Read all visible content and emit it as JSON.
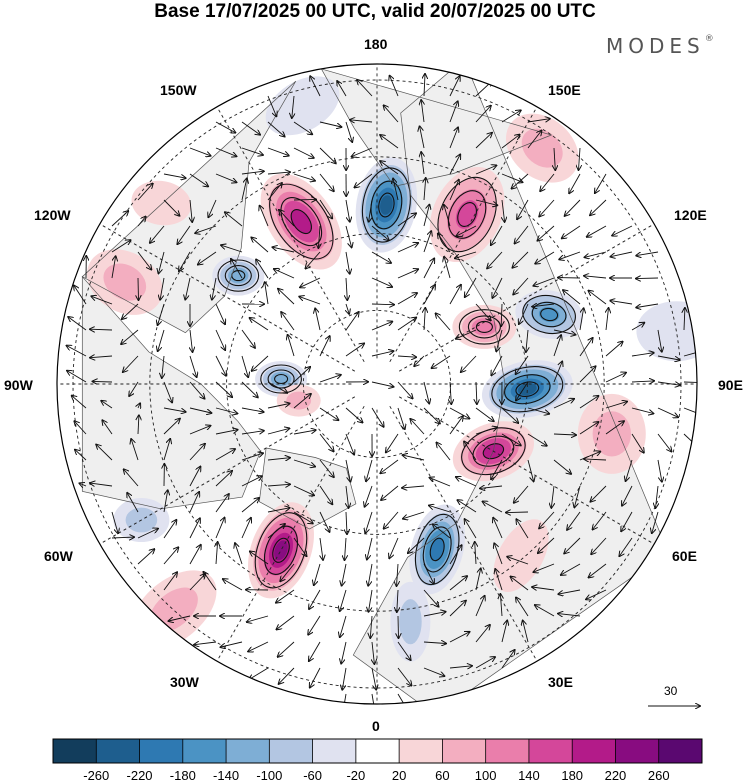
{
  "title": "Base 17/07/2025 00 UTC, valid 20/07/2025 00 UTC",
  "logo": {
    "text": "MODES",
    "mark": "®"
  },
  "longitude_labels": {
    "top": "180",
    "bottom": "0",
    "left": "90W",
    "right": "90E",
    "nw150": "150W",
    "nw120": "120W",
    "ne150": "150E",
    "ne120": "120E",
    "sw60": "60W",
    "sw30": "30W",
    "se60": "60E",
    "se30": "30E"
  },
  "vector_scale": {
    "label": "30"
  },
  "colorbar": {
    "ticks": [
      "-260",
      "-220",
      "-180",
      "-140",
      "-100",
      "-60",
      "-20",
      "20",
      "60",
      "100",
      "140",
      "180",
      "220",
      "260"
    ],
    "colors": [
      "#123d5c",
      "#1e5e8e",
      "#2e79b2",
      "#4b93c4",
      "#7eaed5",
      "#b3c6e2",
      "#e0e2f0",
      "#ffffff",
      "#f8d6d8",
      "#f3aec0",
      "#ea7eab",
      "#d4479a",
      "#b31b89",
      "#880c80",
      "#5a0870"
    ]
  },
  "map": {
    "projection": "north-polar-stereographic",
    "land_color": "#efefef",
    "anomalies": [
      {
        "lon": 177,
        "r": 0.56,
        "value": -240,
        "rx": 30,
        "ry": 48,
        "rot": 10
      },
      {
        "lon": 152,
        "r": 0.6,
        "value": 170,
        "rx": 34,
        "ry": 50,
        "rot": 25
      },
      {
        "lon": 205,
        "r": 0.56,
        "value": 200,
        "rx": 32,
        "ry": 54,
        "rot": -35
      },
      {
        "lon": 232,
        "r": 0.55,
        "value": -110,
        "rx": 26,
        "ry": 20,
        "rot": 0
      },
      {
        "lon": 112,
        "r": 0.58,
        "value": -150,
        "rx": 34,
        "ry": 24,
        "rot": 10
      },
      {
        "lon": 88,
        "r": 0.47,
        "value": -220,
        "rx": 46,
        "ry": 28,
        "rot": -12
      },
      {
        "lon": 118,
        "r": 0.38,
        "value": 130,
        "rx": 32,
        "ry": 22,
        "rot": 0
      },
      {
        "lon": 60,
        "r": 0.42,
        "value": 200,
        "rx": 42,
        "ry": 28,
        "rot": -20
      },
      {
        "lon": 20,
        "r": 0.55,
        "value": -210,
        "rx": 26,
        "ry": 46,
        "rot": 15
      },
      {
        "lon": 330,
        "r": 0.6,
        "value": 230,
        "rx": 30,
        "ry": 50,
        "rot": 20
      },
      {
        "lon": 267,
        "r": 0.3,
        "value": -130,
        "rx": 26,
        "ry": 18,
        "rot": 0
      },
      {
        "lon": 282,
        "r": 0.25,
        "value": 90,
        "rx": 22,
        "ry": 16,
        "rot": 0
      },
      {
        "lon": 248,
        "r": 0.85,
        "value": 60,
        "rx": 40,
        "ry": 30,
        "rot": 30
      },
      {
        "lon": 78,
        "r": 0.75,
        "value": 80,
        "rx": 34,
        "ry": 40,
        "rot": 0
      },
      {
        "lon": 318,
        "r": 0.95,
        "value": 60,
        "rx": 50,
        "ry": 30,
        "rot": -40
      },
      {
        "lon": 8,
        "r": 0.75,
        "value": -70,
        "rx": 20,
        "ry": 40,
        "rot": 0
      },
      {
        "lon": 145,
        "r": 0.9,
        "value": 60,
        "rx": 40,
        "ry": 30,
        "rot": 40
      },
      {
        "lon": 195,
        "r": 0.9,
        "value": -40,
        "rx": 40,
        "ry": 25,
        "rot": -30
      },
      {
        "lon": 300,
        "r": 0.85,
        "value": -60,
        "rx": 28,
        "ry": 22,
        "rot": 0
      },
      {
        "lon": 40,
        "r": 0.7,
        "value": 50,
        "rx": 22,
        "ry": 40,
        "rot": 30
      },
      {
        "lon": 230,
        "r": 0.88,
        "value": 40,
        "rx": 30,
        "ry": 22,
        "rot": 10
      },
      {
        "lon": 100,
        "r": 0.95,
        "value": -50,
        "rx": 40,
        "ry": 30,
        "rot": 0
      }
    ]
  }
}
